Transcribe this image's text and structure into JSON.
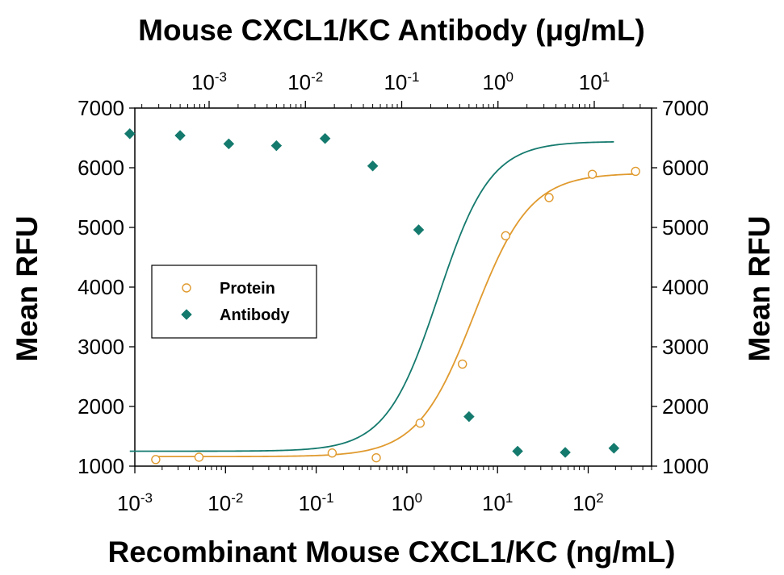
{
  "chart_data": {
    "type": "scatter",
    "title": "Mouse CXCL1/KC Antibody (μg/mL)",
    "xlabel": "Recombinant Mouse CXCL1/KC (ng/mL)",
    "ylabel": "Mean RFU",
    "ylabel_right": "Mean RFU",
    "x_scale": "log",
    "xlim": [
      0.001,
      500
    ],
    "ylim": [
      1000,
      7000
    ],
    "yticks": [
      1000,
      2000,
      3000,
      4000,
      5000,
      6000,
      7000
    ],
    "bottom_ticks": [
      {
        "value": 0.001,
        "base": "10",
        "exp": "-3"
      },
      {
        "value": 0.01,
        "base": "10",
        "exp": "-2"
      },
      {
        "value": 0.1,
        "base": "10",
        "exp": "-1"
      },
      {
        "value": 1,
        "base": "10",
        "exp": "0"
      },
      {
        "value": 10,
        "base": "10",
        "exp": "1"
      },
      {
        "value": 100,
        "base": "10",
        "exp": "2"
      }
    ],
    "top_axis": {
      "label": "Mouse CXCL1/KC Antibody (μg/mL)",
      "scale": "log",
      "ticks": [
        {
          "value": 0.001,
          "base": "10",
          "exp": "-3"
        },
        {
          "value": 0.01,
          "base": "10",
          "exp": "-2"
        },
        {
          "value": 0.1,
          "base": "10",
          "exp": "-1"
        },
        {
          "value": 1,
          "base": "10",
          "exp": "0"
        },
        {
          "value": 10,
          "base": "10",
          "exp": "1"
        }
      ]
    },
    "legend": {
      "placement": "middle-left"
    },
    "series": [
      {
        "name": "Protein",
        "marker": "open-circle",
        "color": "#e09a2e",
        "axis": "bottom",
        "x": [
          0.0017,
          0.0051,
          0.15,
          0.46,
          1.4,
          4.1,
          12.3,
          37,
          111,
          333
        ],
        "y": [
          1110,
          1150,
          1220,
          1140,
          1720,
          2710,
          4860,
          5500,
          5890,
          5940
        ],
        "fit": {
          "bottom": 1160,
          "top": 5910,
          "ec50": 5.5,
          "hill": 1.4
        }
      },
      {
        "name": "Antibody",
        "marker": "filled-diamond",
        "color": "#157a6e",
        "axis": "top",
        "x": [
          0.00015,
          0.0005,
          0.0016,
          0.005,
          0.016,
          0.05,
          0.15,
          0.5,
          1.6,
          5,
          16
        ],
        "y": [
          6570,
          6540,
          6400,
          6370,
          6490,
          6030,
          4960,
          1830,
          1250,
          1230,
          1300
        ],
        "fit": {
          "bottom": 1250,
          "top": 6440,
          "ec50": 0.24,
          "hill": 1.6
        }
      }
    ]
  }
}
